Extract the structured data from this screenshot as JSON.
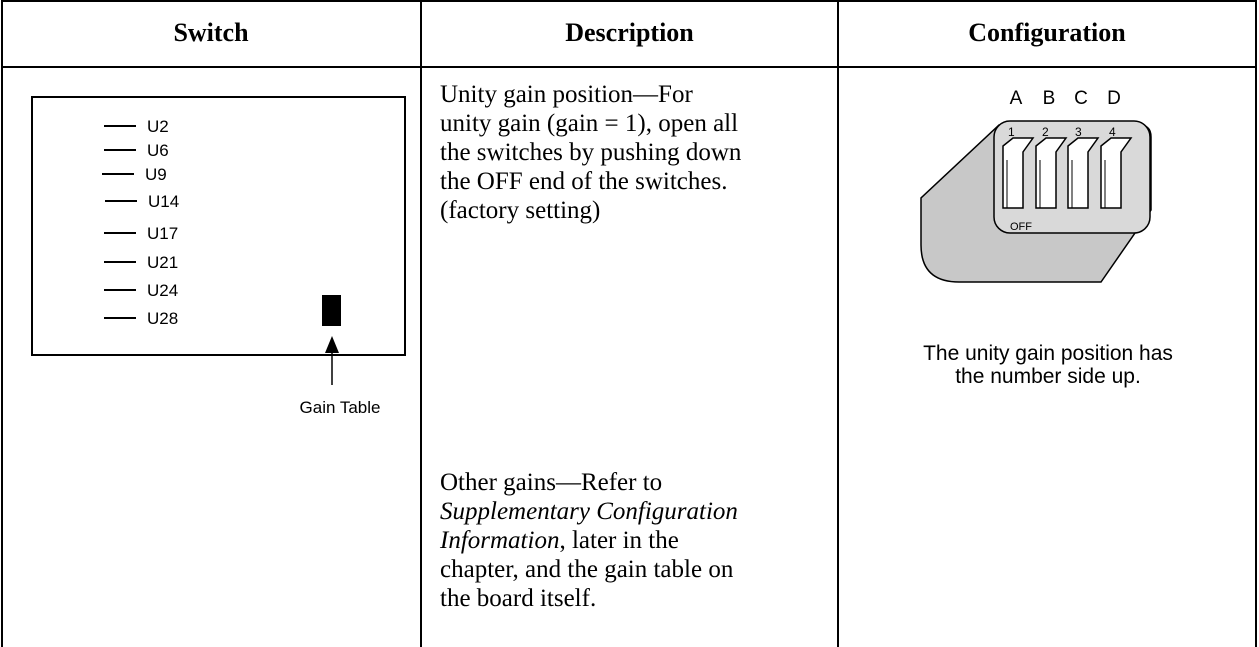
{
  "table": {
    "header": [
      "Switch",
      "Description",
      "Configuration"
    ],
    "switch_diagram": {
      "labels": [
        "U2",
        "U6",
        "U9",
        "U14",
        "U17",
        "U21",
        "U24",
        "U28"
      ],
      "callout": "Gain Table"
    },
    "description": [
      [
        [
          {
            "text": "Unity gain position—For",
            "italic": false
          }
        ],
        [
          {
            "text": "unity gain (gain = 1), open all",
            "italic": false
          }
        ],
        [
          {
            "text": "the switches by pushing down",
            "italic": false
          }
        ],
        [
          {
            "text": "the OFF end of the switches.",
            "italic": false
          }
        ],
        [
          {
            "text": "(factory setting)",
            "italic": false
          }
        ]
      ],
      [
        [
          {
            "text": "Other gains—Refer to",
            "italic": false
          }
        ],
        [
          {
            "text": "Supplementary Configuration",
            "italic": true
          }
        ],
        [
          {
            "text": "Information",
            "italic": true
          },
          {
            "text": ", later in the",
            "italic": false
          }
        ],
        [
          {
            "text": "chapter, and the gain table on",
            "italic": false
          }
        ],
        [
          {
            "text": "the board itself.",
            "italic": false
          }
        ]
      ]
    ],
    "configuration": {
      "switch_letters": [
        "A",
        "B",
        "C",
        "D"
      ],
      "switch_numbers": [
        "1",
        "2",
        "3",
        "4"
      ],
      "off_label": "OFF",
      "caption": [
        "The unity gain position has",
        "the number side up."
      ]
    }
  }
}
